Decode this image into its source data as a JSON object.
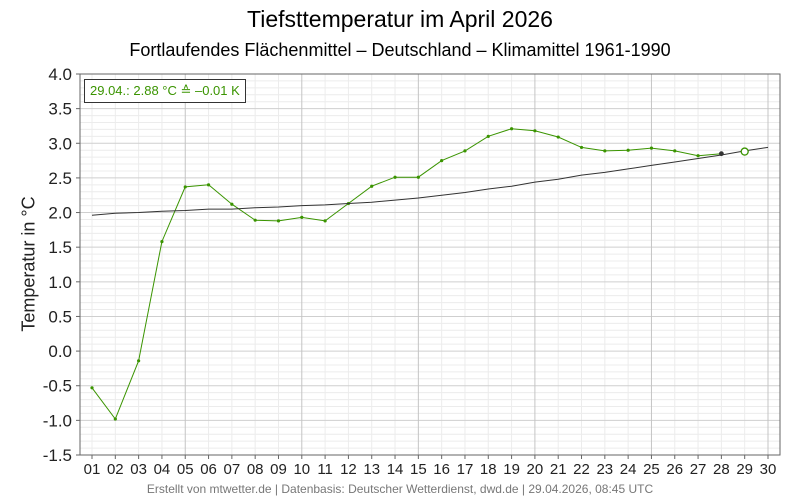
{
  "chart_data": {
    "type": "line",
    "title": "Tiefsttemperatur im April 2026",
    "subtitle": "Fortlaufendes Flächenmittel – Deutschland – Klimamittel 1961-1990",
    "ylabel": "Temperatur in °C",
    "xlabel": "",
    "ylim": [
      -1.5,
      4.0
    ],
    "xlim": [
      1,
      30
    ],
    "grid": true,
    "yticks": [
      "4.0",
      "3.5",
      "3.0",
      "2.5",
      "2.0",
      "1.5",
      "1.0",
      "0.5",
      "0.0",
      "-0.5",
      "-1.0",
      "-1.5"
    ],
    "categories": [
      "01",
      "02",
      "03",
      "04",
      "05",
      "06",
      "07",
      "08",
      "09",
      "10",
      "11",
      "12",
      "13",
      "14",
      "15",
      "16",
      "17",
      "18",
      "19",
      "20",
      "21",
      "22",
      "23",
      "24",
      "25",
      "26",
      "27",
      "28",
      "29",
      "30"
    ],
    "annotation": "29.04.: 2.88 °C ≙ –0.01 K",
    "colors": {
      "current": "#3a9400",
      "climate": "#333333"
    },
    "series": [
      {
        "key": "current",
        "x": [
          1,
          2,
          3,
          4,
          5,
          6,
          7,
          8,
          9,
          10,
          11,
          12,
          13,
          14,
          15,
          16,
          17,
          18,
          19,
          20,
          21,
          22,
          23,
          24,
          25,
          26,
          27,
          28
        ],
        "values": [
          -0.53,
          -0.98,
          -0.14,
          1.58,
          2.37,
          2.4,
          2.12,
          1.89,
          1.88,
          1.93,
          1.88,
          2.13,
          2.38,
          2.51,
          2.51,
          2.75,
          2.89,
          3.1,
          3.21,
          3.18,
          3.09,
          2.94,
          2.89,
          2.9,
          2.93,
          2.89,
          2.82,
          2.85
        ]
      },
      {
        "key": "climate",
        "x": [
          1,
          2,
          3,
          4,
          5,
          6,
          7,
          8,
          9,
          10,
          11,
          12,
          13,
          14,
          15,
          16,
          17,
          18,
          19,
          20,
          21,
          22,
          23,
          24,
          25,
          26,
          27,
          28,
          29,
          30
        ],
        "values": [
          1.96,
          1.99,
          2.0,
          2.02,
          2.03,
          2.05,
          2.05,
          2.07,
          2.08,
          2.1,
          2.11,
          2.13,
          2.15,
          2.18,
          2.21,
          2.25,
          2.29,
          2.34,
          2.38,
          2.44,
          2.48,
          2.54,
          2.58,
          2.63,
          2.68,
          2.73,
          2.78,
          2.83,
          2.89,
          2.94
        ]
      }
    ],
    "markers": [
      {
        "x": 28,
        "y": 2.85,
        "shape": "dot"
      },
      {
        "x": 29,
        "y": 2.88,
        "shape": "ring"
      }
    ]
  },
  "footer": "Erstellt von mtwetter.de | Datenbasis: Deutscher Wetterdienst, dwd.de | 29.04.2026, 08:45 UTC"
}
